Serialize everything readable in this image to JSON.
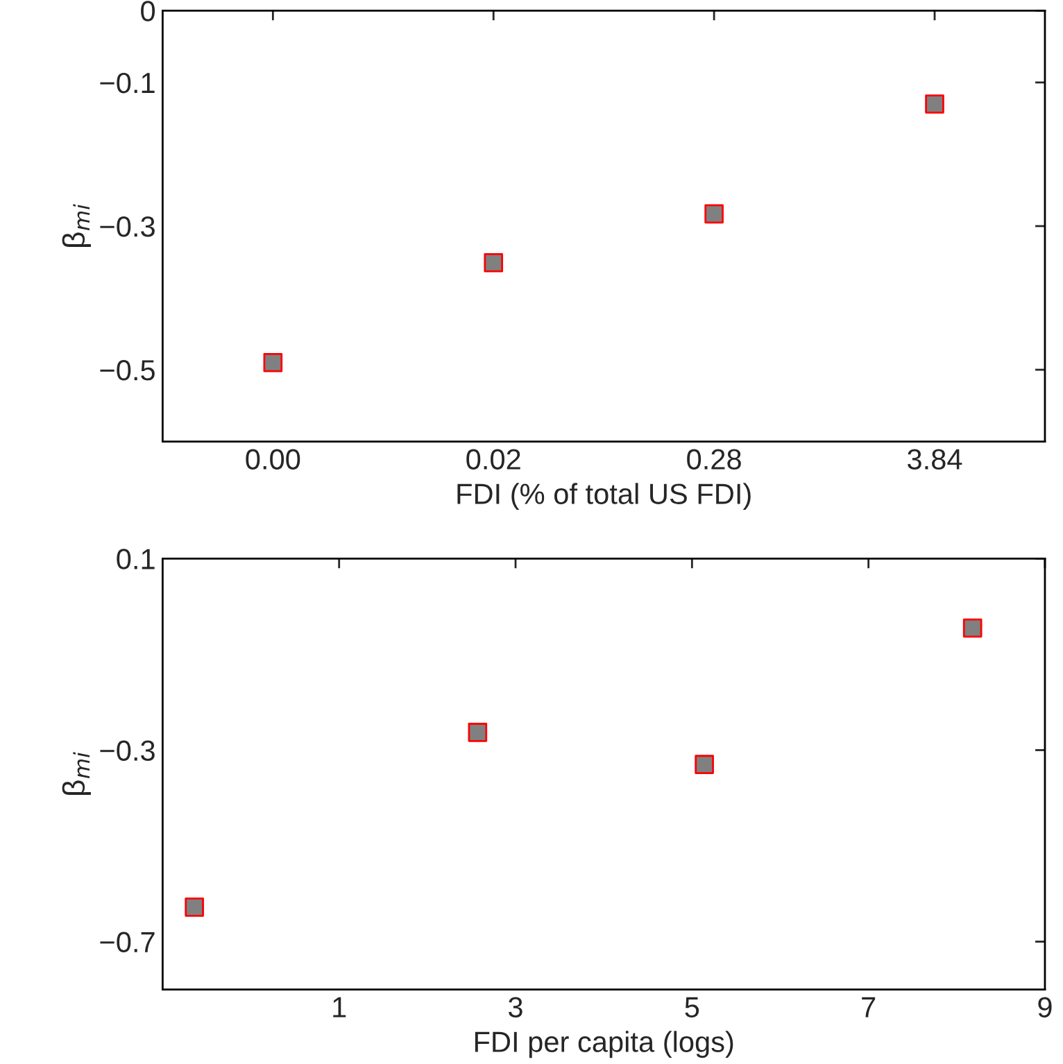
{
  "chart_data": [
    {
      "type": "scatter",
      "categories": [
        "0.00",
        "0.02",
        "0.28",
        "3.84"
      ],
      "values": [
        -0.49,
        -0.351,
        -0.283,
        -0.13
      ],
      "color": "#808080",
      "marker": "square",
      "xlabel": "FDI (% of total US FDI)",
      "ylabel": "β$_{mi}$",
      "ylim": [
        -0.6,
        0
      ],
      "yticks": [
        {
          "value": -0.5,
          "label": "−0.5"
        },
        {
          "value": -0.3,
          "label": "−0.3"
        },
        {
          "value": -0.1,
          "label": "−0.1"
        },
        0
      ],
      "grid": false
    },
    {
      "type": "scatter",
      "x": [
        -0.64,
        2.57,
        5.14,
        8.18
      ],
      "values": [
        -0.628,
        -0.263,
        -0.33,
        -0.045
      ],
      "color": "#808080",
      "marker": "square",
      "xlabel": "FDI per capita (logs)",
      "ylabel": "β$_{mi}$",
      "xlim": [
        -1,
        9
      ],
      "xticks": [
        1,
        3,
        5,
        7,
        9
      ],
      "ylim": [
        -0.8,
        0.1
      ],
      "yticks": [
        {
          "value": -0.7,
          "label": "−0.7"
        },
        {
          "value": -0.3,
          "label": "−0.3"
        },
        0.1
      ],
      "grid": false
    }
  ]
}
